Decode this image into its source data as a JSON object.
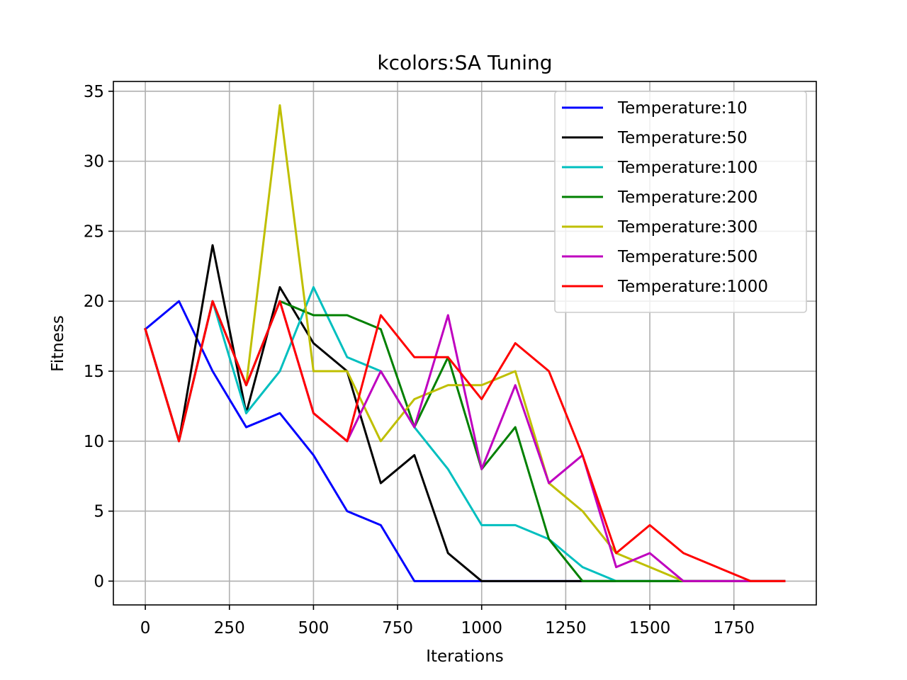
{
  "chart_data": {
    "type": "line",
    "title": "kcolors:SA Tuning",
    "xlabel": "Iterations",
    "ylabel": "Fitness",
    "xlim": [
      -95,
      1995
    ],
    "ylim": [
      -1.7,
      35.7
    ],
    "xticks": [
      0,
      250,
      500,
      750,
      1000,
      1250,
      1500,
      1750
    ],
    "yticks": [
      0,
      5,
      10,
      15,
      20,
      25,
      30,
      35
    ],
    "grid": true,
    "legend_position": "top-right",
    "x": [
      0,
      100,
      200,
      300,
      400,
      500,
      600,
      700,
      800,
      900,
      1000,
      1100,
      1200,
      1300,
      1400,
      1500,
      1600,
      1700,
      1800,
      1900
    ],
    "series": [
      {
        "name": "Temperature:10",
        "color": "#0000ff",
        "values": [
          18,
          20,
          15,
          11,
          12,
          9,
          5,
          4,
          0,
          0,
          0,
          0,
          0,
          0,
          0,
          0,
          0,
          0,
          0,
          0
        ]
      },
      {
        "name": "Temperature:50",
        "color": "#000000",
        "values": [
          18,
          10,
          24,
          12,
          21,
          17,
          15,
          7,
          9,
          2,
          0,
          0,
          0,
          0,
          0,
          0,
          0,
          0,
          0,
          0
        ]
      },
      {
        "name": "Temperature:100",
        "color": "#00bfbf",
        "values": [
          18,
          10,
          20,
          12,
          15,
          21,
          16,
          15,
          11,
          8,
          4,
          4,
          3,
          1,
          0,
          0,
          0,
          0,
          0,
          0
        ]
      },
      {
        "name": "Temperature:200",
        "color": "#008000",
        "values": [
          18,
          10,
          20,
          14,
          20,
          19,
          19,
          18,
          11,
          16,
          8,
          11,
          3,
          0,
          0,
          0,
          0,
          0,
          0,
          0
        ]
      },
      {
        "name": "Temperature:300",
        "color": "#bfbf00",
        "values": [
          18,
          10,
          20,
          14,
          34,
          15,
          15,
          10,
          13,
          14,
          14,
          15,
          7,
          5,
          2,
          1,
          0,
          0,
          0,
          0
        ]
      },
      {
        "name": "Temperature:500",
        "color": "#bf00bf",
        "values": [
          18,
          10,
          20,
          14,
          20,
          12,
          10,
          15,
          11,
          19,
          8,
          14,
          7,
          9,
          1,
          2,
          0,
          0,
          0,
          0
        ]
      },
      {
        "name": "Temperature:1000",
        "color": "#ff0000",
        "values": [
          18,
          10,
          20,
          14,
          20,
          12,
          10,
          19,
          16,
          16,
          13,
          17,
          15,
          9,
          2,
          4,
          2,
          1,
          0,
          0
        ]
      }
    ]
  }
}
